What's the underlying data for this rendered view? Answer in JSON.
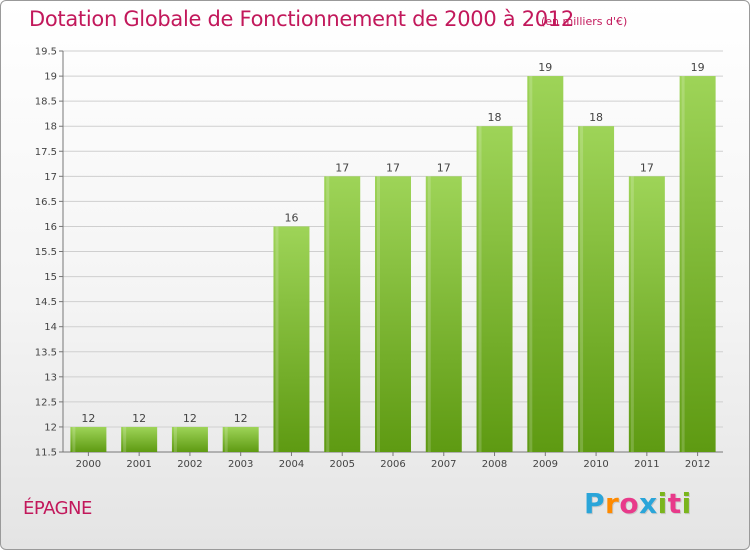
{
  "title": "Dotation Globale de Fonctionnement de 2000 à 2012",
  "subtitle": "(en milliers d'€)",
  "commune": "ÉPAGNE",
  "logo": [
    "P",
    "r",
    "o",
    "x",
    "i",
    "t",
    "i"
  ],
  "logo_colors": [
    "#2aa5d9",
    "#ff8a00",
    "#e83a8a",
    "#2aa5d9",
    "#7ab51d",
    "#e83a8a",
    "#7ab51d"
  ],
  "chart_data": {
    "type": "bar",
    "categories": [
      "2000",
      "2001",
      "2002",
      "2003",
      "2004",
      "2005",
      "2006",
      "2007",
      "2008",
      "2009",
      "2010",
      "2011",
      "2012"
    ],
    "values": [
      12,
      12,
      12,
      12,
      16,
      17,
      17,
      17,
      18,
      19,
      18,
      17,
      19
    ],
    "ylim": [
      11.5,
      19.5
    ],
    "yticks": [
      "11.5",
      "12",
      "12.5",
      "13",
      "13.5",
      "14",
      "14.5",
      "15",
      "15.5",
      "16",
      "16.5",
      "17",
      "17.5",
      "18",
      "18.5",
      "19",
      "19.5"
    ],
    "grid": true,
    "bar_color_top": "#9ed458",
    "bar_color_bottom": "#5e9a12"
  }
}
